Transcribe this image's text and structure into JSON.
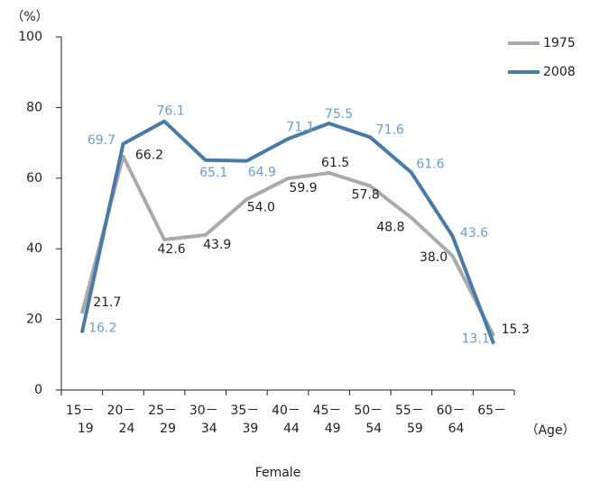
{
  "chart_data": {
    "type": "line",
    "y_label": "（%）",
    "x_label": "（Age）",
    "caption": "Female",
    "categories": [
      [
        "15－",
        "19"
      ],
      [
        "20－",
        "24"
      ],
      [
        "25－",
        "29"
      ],
      [
        "30－",
        "34"
      ],
      [
        "35－",
        "39"
      ],
      [
        "40－",
        "44"
      ],
      [
        "45－",
        "49"
      ],
      [
        "50－",
        "54"
      ],
      [
        "55－",
        "59"
      ],
      [
        "60－",
        "64"
      ],
      [
        "65－"
      ]
    ],
    "series": [
      {
        "name": "1975",
        "color": "#aaaaaa",
        "label_color": "#222222",
        "values": [
          21.7,
          66.2,
          42.6,
          43.9,
          54.0,
          59.9,
          61.5,
          57.8,
          48.8,
          38.0,
          15.3
        ],
        "value_labels": [
          "21.7",
          "66.2",
          "42.6",
          "43.9",
          "54.0",
          "59.9",
          "61.5",
          "57.8",
          "48.8",
          "38.0",
          "15.3"
        ]
      },
      {
        "name": "2008",
        "color": "#4a7aa6",
        "label_color": "#6f9cc8",
        "values": [
          16.2,
          69.7,
          76.1,
          65.1,
          64.9,
          71.1,
          75.5,
          71.6,
          61.6,
          43.6,
          13.1
        ],
        "value_labels": [
          "16.2",
          "69.7",
          "76.1",
          "65.1",
          "64.9",
          "71.1",
          "75.5",
          "71.6",
          "61.6",
          "43.6",
          "13.1"
        ]
      }
    ],
    "ylim": [
      0,
      100
    ],
    "yticks": [
      0,
      20,
      40,
      60,
      80,
      100
    ],
    "grid": false,
    "legend": "top-right"
  }
}
